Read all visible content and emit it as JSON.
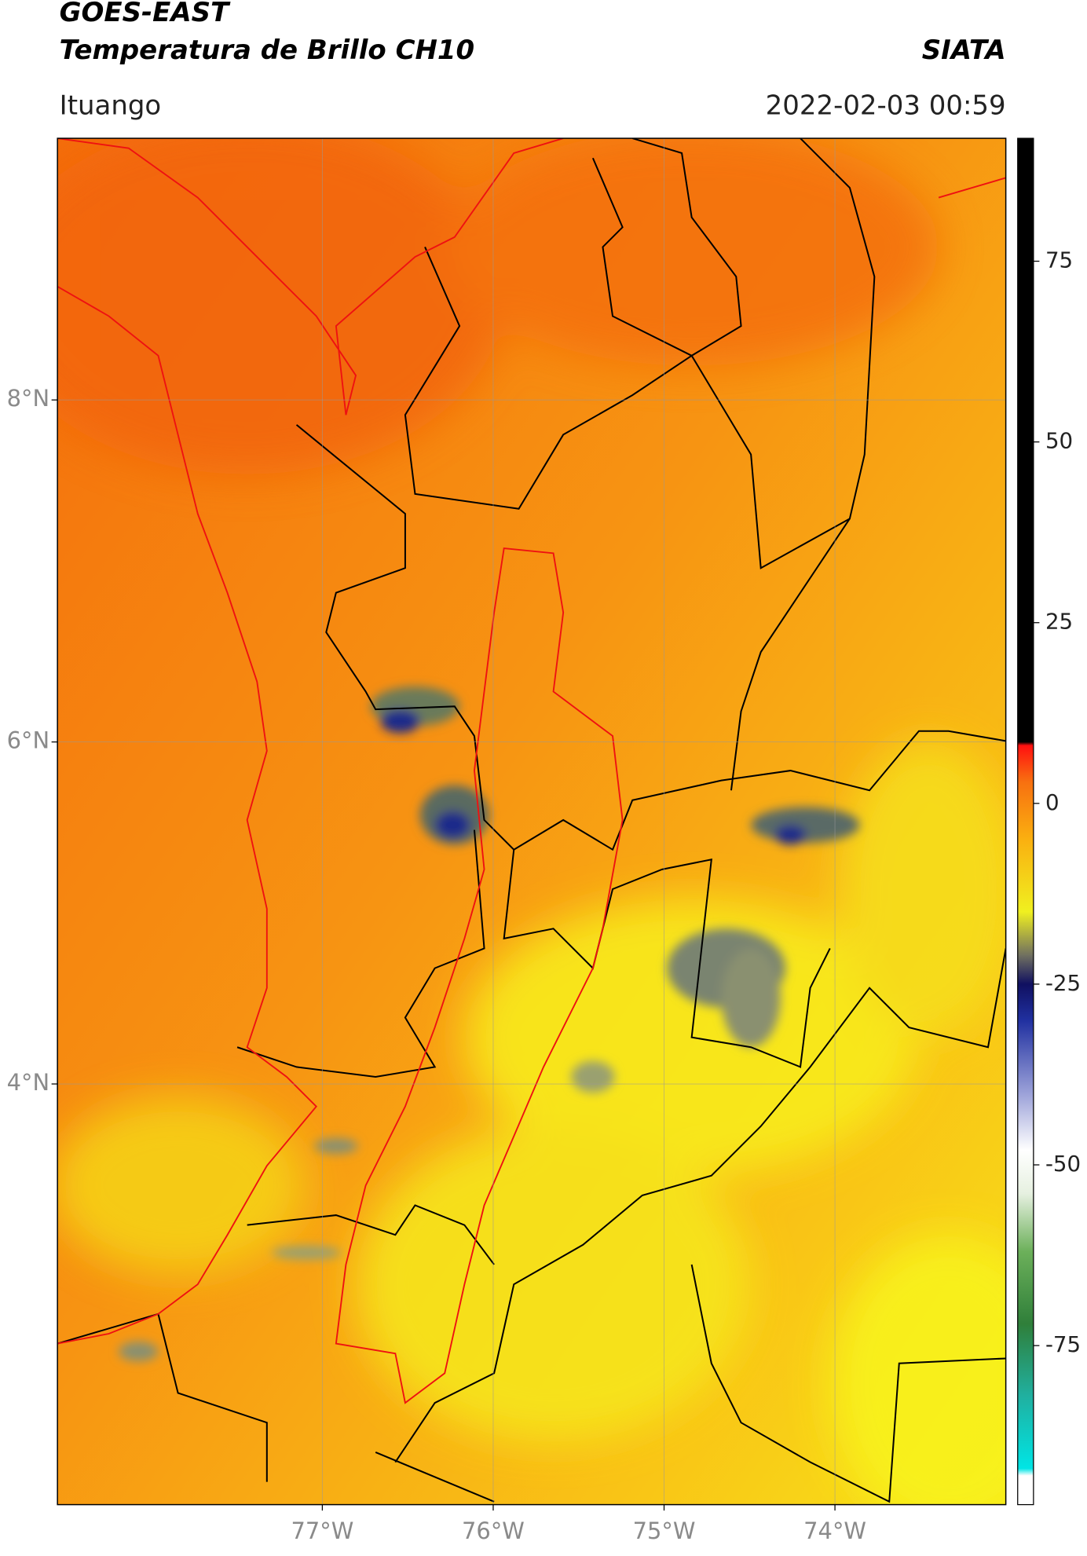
{
  "header": {
    "title": "GOES-EAST",
    "subtitle": "Temperatura de Brillo CH10",
    "source": "SIATA",
    "location": "Ituango",
    "datetime": "2022-02-03 00:59"
  },
  "map": {
    "xlim": [
      -78.55,
      -73.0
    ],
    "ylim": [
      1.54,
      9.53
    ],
    "grid": true,
    "xticks": [
      {
        "value": -77,
        "label": "77°W"
      },
      {
        "value": -76,
        "label": "76°W"
      },
      {
        "value": -75,
        "label": "75°W"
      },
      {
        "value": -74,
        "label": "74°W"
      }
    ],
    "yticks": [
      {
        "value": 8,
        "label": "8°N"
      },
      {
        "value": 6,
        "label": "6°N"
      },
      {
        "value": 4,
        "label": "4°N"
      }
    ]
  },
  "colorbar": {
    "lim": [
      -97,
      92
    ],
    "ticks": [
      75,
      50,
      25,
      0,
      -25,
      -50,
      -75
    ],
    "stops": [
      {
        "value": -97,
        "color": "#ffffff"
      },
      {
        "value": -93,
        "color": "#ffffff"
      },
      {
        "value": -92,
        "color": "#00e5e5"
      },
      {
        "value": -82,
        "color": "#20b0a0"
      },
      {
        "value": -72,
        "color": "#2f7f3a"
      },
      {
        "value": -62,
        "color": "#6cb05a"
      },
      {
        "value": -54,
        "color": "#e6f0e0"
      },
      {
        "value": -48,
        "color": "#ffffff"
      },
      {
        "value": -40,
        "color": "#9aa0d8"
      },
      {
        "value": -30,
        "color": "#2030a0"
      },
      {
        "value": -25,
        "color": "#101060"
      },
      {
        "value": -21,
        "color": "#707060"
      },
      {
        "value": -15,
        "color": "#f0f020"
      },
      {
        "value": -5,
        "color": "#fab010"
      },
      {
        "value": 3,
        "color": "#f87010"
      },
      {
        "value": 8,
        "color": "#ff1010"
      },
      {
        "value": 8.5,
        "color": "#000000"
      },
      {
        "value": 92,
        "color": "#000000"
      }
    ]
  }
}
